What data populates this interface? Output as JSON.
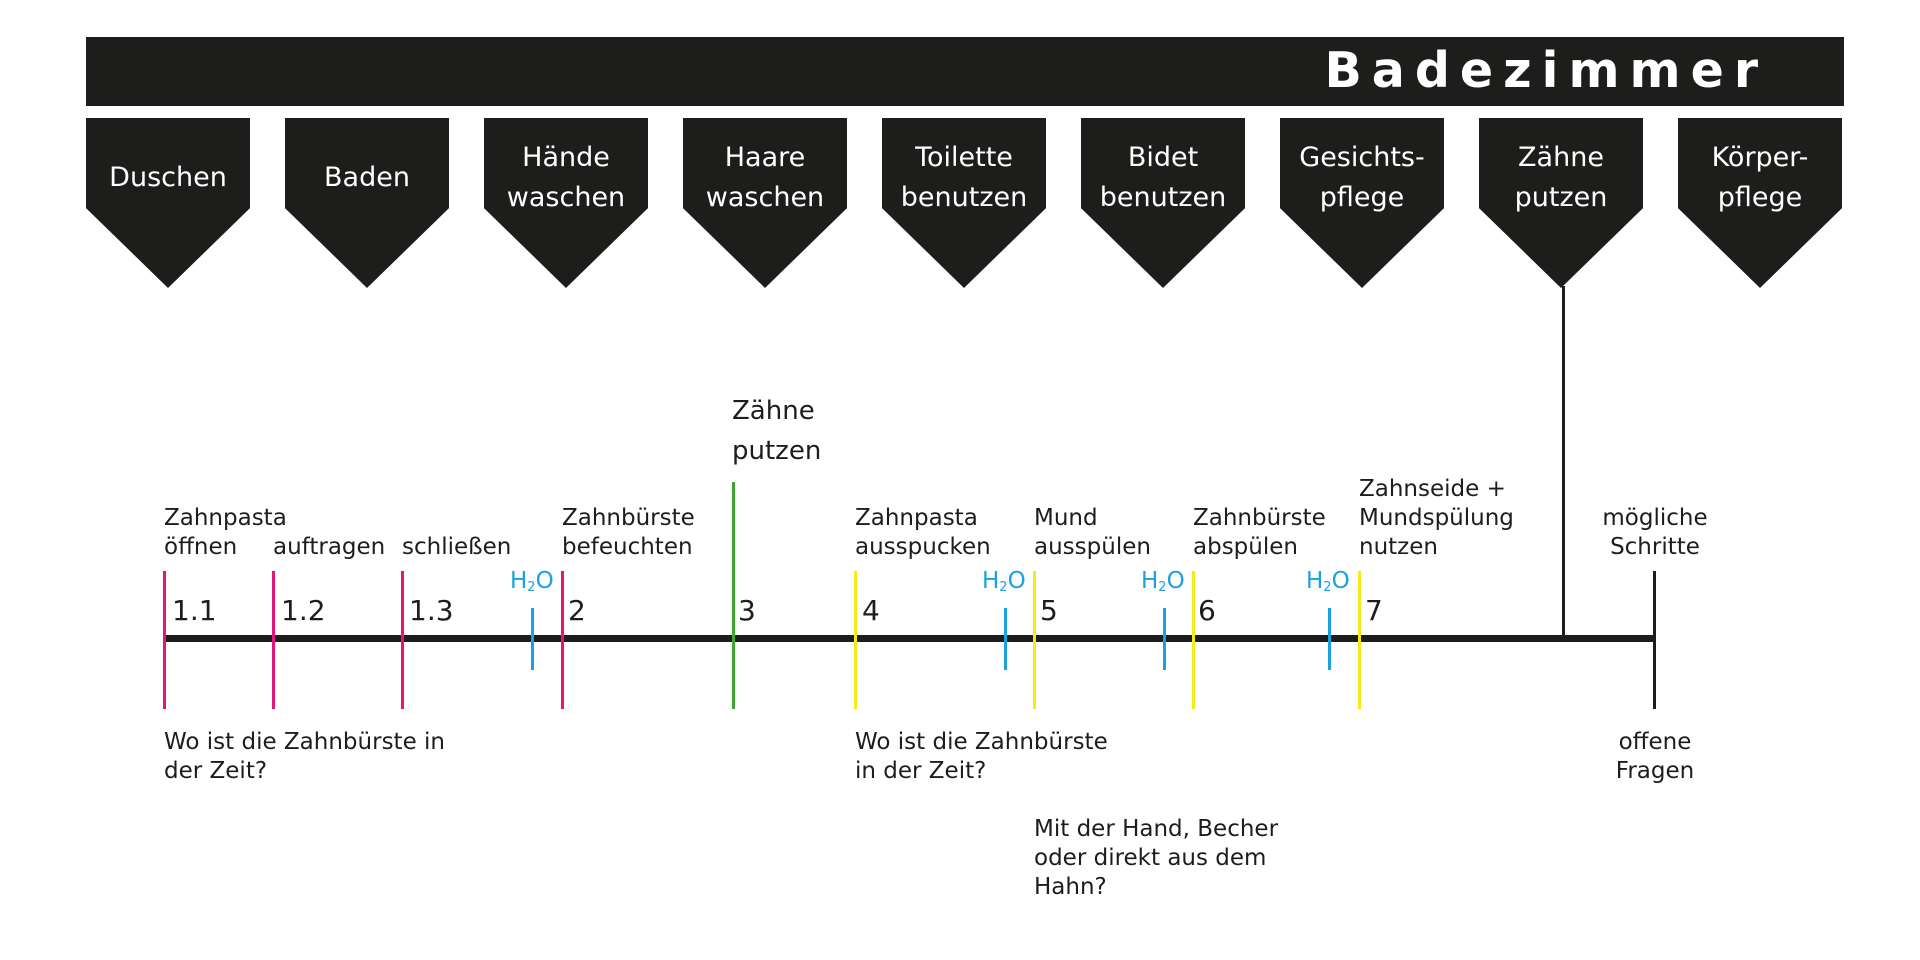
{
  "header": {
    "title": "Badezimmer"
  },
  "tabs": [
    {
      "label": "Duschen"
    },
    {
      "label": "Baden"
    },
    {
      "label": "Hände\nwaschen"
    },
    {
      "label": "Haare\nwaschen"
    },
    {
      "label": "Toilette\nbenutzen"
    },
    {
      "label": "Bidet\nbenutzen"
    },
    {
      "label": "Gesichts-\npflege"
    },
    {
      "label": "Zähne\nputzen"
    },
    {
      "label": "Körper-\npflege"
    }
  ],
  "timeline": {
    "title": "Zähne\nputzen",
    "steps": [
      {
        "number": "1.1",
        "label": "Zahnpasta\nöffnen",
        "color": "#e5147d"
      },
      {
        "number": "1.2",
        "label": "auftragen",
        "color": "#e5147d"
      },
      {
        "number": "1.3",
        "label": "schließen",
        "color": "#e5147d"
      },
      {
        "number": "2",
        "label": "Zahnbürste\nbefeuchten",
        "color": "#e5147d"
      },
      {
        "number": "3",
        "label": "",
        "color": "#3fa535"
      },
      {
        "number": "4",
        "label": "Zahnpasta\nausspucken",
        "color": "#f6eb16"
      },
      {
        "number": "5",
        "label": "Mund\nausspülen",
        "color": "#f6eb16"
      },
      {
        "number": "6",
        "label": "Zahnbürste\nabspülen",
        "color": "#f6eb16"
      },
      {
        "number": "7",
        "label": "Zahnseide +\nMundspülung\nnutzen",
        "color": "#f6eb16"
      }
    ],
    "water_marker": {
      "text": "H",
      "sub": "2",
      "tail": "O",
      "color": "#1ba1e2"
    },
    "end_label": "mögliche\nSchritte",
    "questions_label": "offene\nFragen",
    "questions": [
      "Wo ist die Zahnbürste in\nder Zeit?",
      "Wo ist die Zahnbürste\nin der Zeit?",
      "Mit der Hand, Becher\noder direkt aus dem\nHahn?"
    ]
  },
  "colors": {
    "dark": "#1d1d1b",
    "magenta": "#e5147d",
    "green": "#3fa535",
    "yellow": "#f6eb16",
    "cyan": "#1ba1e2"
  }
}
